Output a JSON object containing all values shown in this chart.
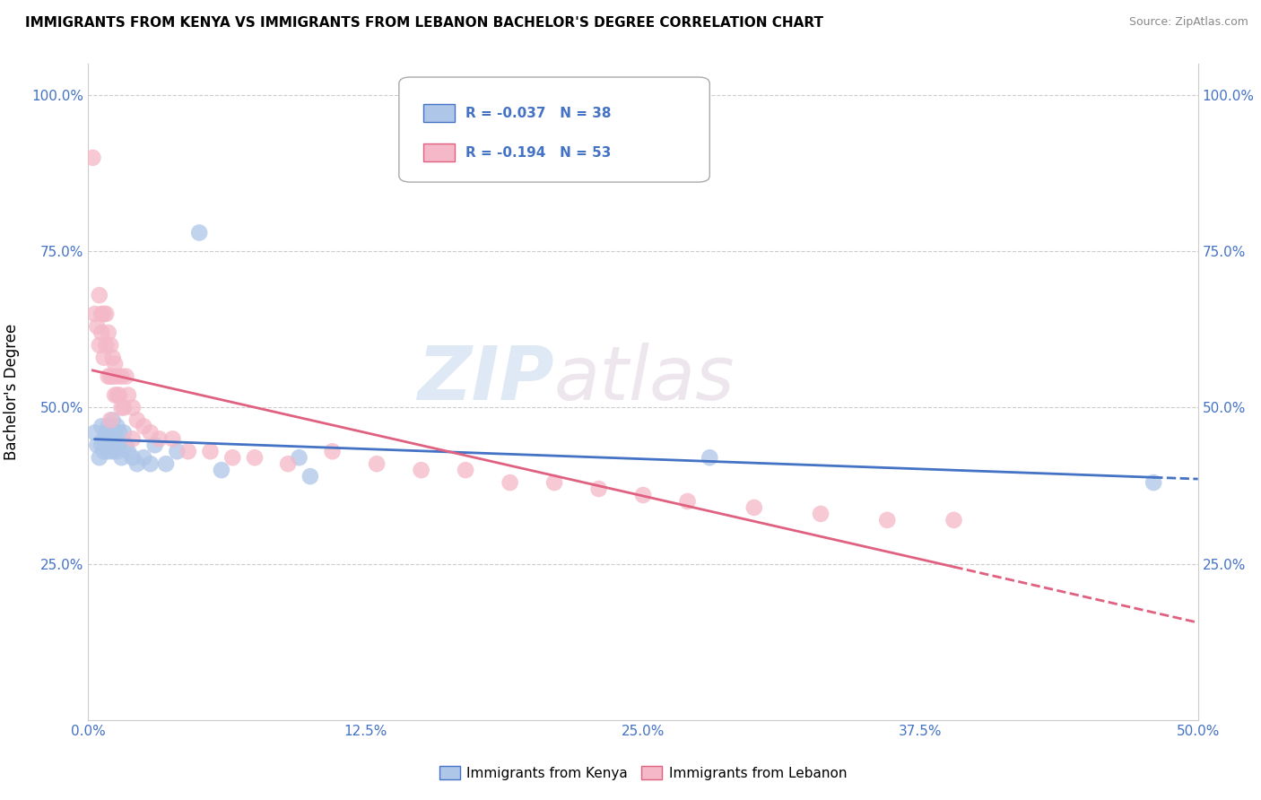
{
  "title": "IMMIGRANTS FROM KENYA VS IMMIGRANTS FROM LEBANON BACHELOR'S DEGREE CORRELATION CHART",
  "source": "Source: ZipAtlas.com",
  "ylabel": "Bachelor's Degree",
  "xlim": [
    0.0,
    0.5
  ],
  "ylim": [
    0.0,
    1.05
  ],
  "xtick_labels": [
    "0.0%",
    "12.5%",
    "25.0%",
    "37.5%",
    "50.0%"
  ],
  "xtick_vals": [
    0.0,
    0.125,
    0.25,
    0.375,
    0.5
  ],
  "ytick_labels": [
    "25.0%",
    "50.0%",
    "75.0%",
    "100.0%"
  ],
  "ytick_vals": [
    0.25,
    0.5,
    0.75,
    1.0
  ],
  "kenya_R": -0.037,
  "kenya_N": 38,
  "lebanon_R": -0.194,
  "lebanon_N": 53,
  "kenya_color": "#aec6e8",
  "lebanon_color": "#f4b8c8",
  "kenya_line_color": "#4472c4",
  "lebanon_line_color": "#e06080",
  "watermark_zip": "ZIP",
  "watermark_atlas": "atlas",
  "legend_kenya": "Immigrants from Kenya",
  "legend_lebanon": "Immigrants from Lebanon",
  "kenya_scatter_x": [
    0.003,
    0.004,
    0.005,
    0.006,
    0.006,
    0.007,
    0.007,
    0.008,
    0.008,
    0.009,
    0.009,
    0.01,
    0.01,
    0.011,
    0.011,
    0.012,
    0.012,
    0.013,
    0.013,
    0.014,
    0.014,
    0.015,
    0.016,
    0.017,
    0.018,
    0.02,
    0.022,
    0.025,
    0.028,
    0.03,
    0.035,
    0.04,
    0.05,
    0.06,
    0.095,
    0.1,
    0.28,
    0.48
  ],
  "kenya_scatter_y": [
    0.46,
    0.44,
    0.42,
    0.47,
    0.44,
    0.43,
    0.45,
    0.46,
    0.44,
    0.47,
    0.43,
    0.46,
    0.44,
    0.48,
    0.43,
    0.46,
    0.44,
    0.47,
    0.43,
    0.46,
    0.44,
    0.42,
    0.46,
    0.44,
    0.43,
    0.42,
    0.41,
    0.42,
    0.41,
    0.44,
    0.41,
    0.43,
    0.78,
    0.4,
    0.42,
    0.39,
    0.42,
    0.38
  ],
  "lebanon_scatter_x": [
    0.002,
    0.003,
    0.004,
    0.005,
    0.005,
    0.006,
    0.006,
    0.007,
    0.007,
    0.008,
    0.008,
    0.009,
    0.009,
    0.01,
    0.01,
    0.011,
    0.011,
    0.012,
    0.012,
    0.013,
    0.013,
    0.014,
    0.015,
    0.016,
    0.017,
    0.018,
    0.02,
    0.022,
    0.025,
    0.028,
    0.032,
    0.038,
    0.045,
    0.055,
    0.065,
    0.075,
    0.09,
    0.11,
    0.13,
    0.15,
    0.17,
    0.19,
    0.21,
    0.23,
    0.25,
    0.27,
    0.3,
    0.33,
    0.36,
    0.39,
    0.01,
    0.015,
    0.02
  ],
  "lebanon_scatter_y": [
    0.9,
    0.65,
    0.63,
    0.6,
    0.68,
    0.62,
    0.65,
    0.58,
    0.65,
    0.6,
    0.65,
    0.55,
    0.62,
    0.55,
    0.6,
    0.55,
    0.58,
    0.52,
    0.57,
    0.52,
    0.55,
    0.52,
    0.55,
    0.5,
    0.55,
    0.52,
    0.5,
    0.48,
    0.47,
    0.46,
    0.45,
    0.45,
    0.43,
    0.43,
    0.42,
    0.42,
    0.41,
    0.43,
    0.41,
    0.4,
    0.4,
    0.38,
    0.38,
    0.37,
    0.36,
    0.35,
    0.34,
    0.33,
    0.32,
    0.32,
    0.48,
    0.5,
    0.45
  ]
}
